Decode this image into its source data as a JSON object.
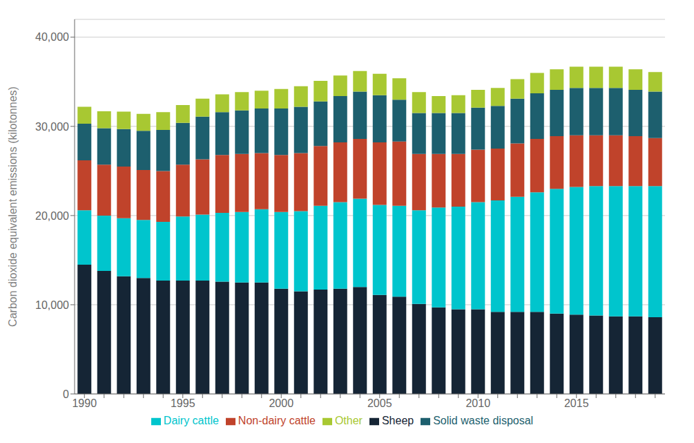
{
  "chart_data": {
    "type": "bar",
    "stacked": true,
    "grid": true,
    "legend": "bottom",
    "y_label": "Carbon dioxide equivalent emissions (kilotonnes)",
    "categories": [
      "1990",
      null,
      null,
      null,
      null,
      "1995",
      null,
      null,
      null,
      null,
      "2000",
      null,
      null,
      null,
      null,
      "2005",
      null,
      null,
      null,
      null,
      "2010",
      null,
      null,
      null,
      null,
      "2015",
      null,
      null,
      null,
      null
    ],
    "series": [
      {
        "name": "Sheep",
        "color": "#152535",
        "values": [
          14500,
          13800,
          13200,
          13000,
          12700,
          12700,
          12700,
          12600,
          12500,
          12500,
          11800,
          11500,
          11700,
          11800,
          12000,
          11100,
          10900,
          10100,
          9700,
          9500,
          9500,
          9200,
          9200,
          9200,
          9000,
          8900,
          8800,
          8700,
          8700,
          8600
        ]
      },
      {
        "name": "Dairy cattle",
        "color": "#00c5cd",
        "values": [
          6100,
          6200,
          6500,
          6500,
          6600,
          7200,
          7400,
          7700,
          7900,
          8200,
          8600,
          9000,
          9400,
          9700,
          9900,
          10100,
          10200,
          10500,
          11200,
          11500,
          12000,
          12500,
          12900,
          13400,
          14000,
          14300,
          14500,
          14600,
          14600,
          14700
        ]
      },
      {
        "name": "Non-dairy cattle",
        "color": "#c0432b",
        "values": [
          5600,
          5700,
          5800,
          5600,
          5700,
          5800,
          6200,
          6500,
          6500,
          6300,
          6400,
          6500,
          6700,
          6700,
          6700,
          7000,
          7200,
          6300,
          6000,
          5900,
          5900,
          5800,
          6000,
          6000,
          5900,
          5800,
          5700,
          5700,
          5600,
          5400
        ]
      },
      {
        "name": "Solid waste disposal",
        "color": "#1d5f6e",
        "values": [
          4100,
          4100,
          4200,
          4400,
          4600,
          4700,
          4800,
          4800,
          4900,
          5000,
          5200,
          5200,
          5000,
          5200,
          5300,
          5300,
          4700,
          4600,
          4600,
          4600,
          4700,
          4800,
          5000,
          5100,
          5200,
          5300,
          5300,
          5300,
          5200,
          5200
        ]
      },
      {
        "name": "Other",
        "color": "#a8c832",
        "values": [
          1900,
          1900,
          1950,
          1900,
          2000,
          2000,
          2000,
          2000,
          2050,
          2000,
          2200,
          2300,
          2300,
          2300,
          2300,
          2400,
          2400,
          2350,
          1900,
          2000,
          2000,
          2000,
          2200,
          2300,
          2300,
          2400,
          2400,
          2400,
          2300,
          2200
        ]
      }
    ],
    "ylim": [
      0,
      42000
    ],
    "yticks": [
      0,
      {
        "value": 10000,
        "label": "10,000"
      },
      {
        "value": 20000,
        "label": "20,000"
      },
      {
        "value": 30000,
        "label": "30,000"
      },
      {
        "value": 40000,
        "label": "40,000"
      }
    ]
  }
}
